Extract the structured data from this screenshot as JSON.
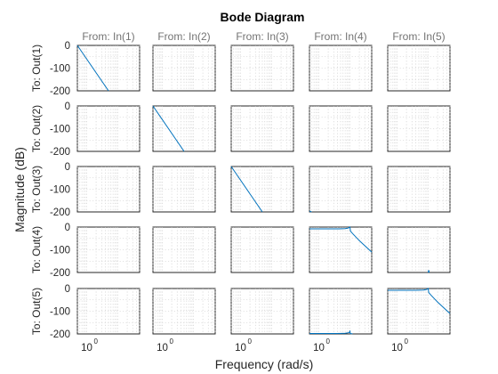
{
  "chart_data": {
    "type": "line",
    "title": "Bode Diagram",
    "xlabel": "Frequency  (rad/s)",
    "ylabel": "Magnitude (dB)",
    "x_scale": "log",
    "xlim": [
      0.5,
      50
    ],
    "ylim": [
      -200,
      0
    ],
    "yticks": [
      0,
      -100,
      -200
    ],
    "ytick_labels": [
      "0",
      "-100",
      "-200"
    ],
    "xtick_labels": [
      "10",
      "10",
      "10",
      "10",
      "10"
    ],
    "xtick_exponent_labels": [
      "0",
      "0",
      "0",
      "0",
      "0"
    ],
    "column_labels": [
      "From: In(1)",
      "From: In(2)",
      "From: In(3)",
      "From: In(4)",
      "From: In(5)"
    ],
    "row_labels": [
      "To: Out(1)",
      "To: Out(2)",
      "To: Out(3)",
      "To: Out(4)",
      "To: Out(5)"
    ],
    "line_color": "#0072bd",
    "grid": true,
    "series": [
      {
        "row": 1,
        "col": 1,
        "x": [
          0.5,
          5
        ],
        "y": [
          0,
          -200
        ]
      },
      {
        "row": 2,
        "col": 2,
        "x": [
          0.5,
          5
        ],
        "y": [
          0,
          -200
        ]
      },
      {
        "row": 3,
        "col": 3,
        "x": [
          0.5,
          5
        ],
        "y": [
          0,
          -200
        ]
      },
      {
        "row": 3,
        "col": 4,
        "x": [
          0.5,
          0.58
        ],
        "y": [
          -196,
          -200
        ]
      },
      {
        "row": 4,
        "col": 4,
        "x": [
          0.5,
          4,
          7,
          8.5,
          9.6,
          10,
          10.4,
          11,
          12,
          20,
          50
        ],
        "y": [
          -8,
          -8,
          -7,
          -5,
          -2,
          8,
          -18,
          -22,
          -28,
          -60,
          -110
        ]
      },
      {
        "row": 4,
        "col": 5,
        "x": [
          10,
          10.4,
          10.8
        ],
        "y": [
          -200,
          -190,
          -200
        ]
      },
      {
        "row": 5,
        "col": 4,
        "x": [
          0.5,
          4,
          7,
          9,
          9.8,
          10,
          10.2,
          10.5,
          11.5,
          12
        ],
        "y": [
          -198,
          -198,
          -197,
          -195,
          -192,
          -185,
          -196,
          -199,
          -199,
          -200
        ]
      },
      {
        "row": 5,
        "col": 5,
        "x": [
          0.5,
          4,
          7,
          8.5,
          9.6,
          10,
          10.4,
          11,
          12,
          20,
          50
        ],
        "y": [
          -8,
          -8,
          -7,
          -5,
          -2,
          8,
          -18,
          -22,
          -28,
          -60,
          -110
        ]
      }
    ]
  }
}
